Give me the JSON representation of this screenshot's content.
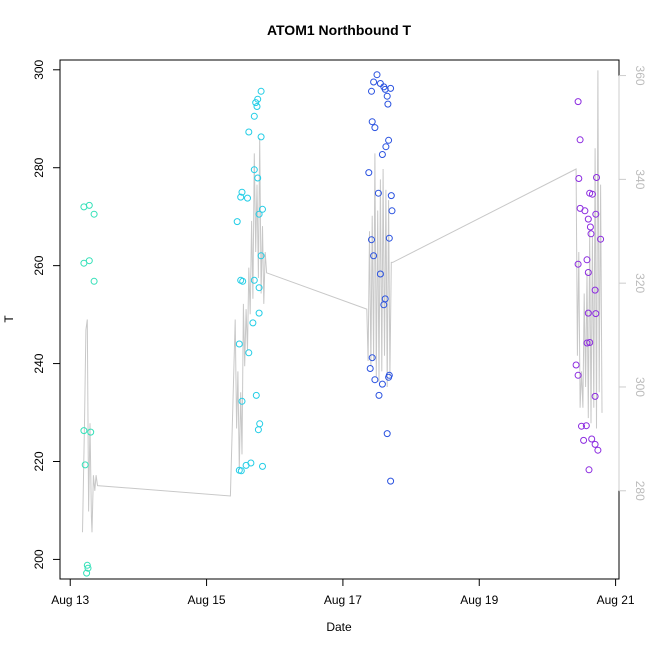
{
  "chart_data": {
    "type": "scatter",
    "title": "ATOM1 Northbound T",
    "xlabel": "Date",
    "ylabel": "T",
    "x_ticks": [
      {
        "label": "Aug 13",
        "day": 13
      },
      {
        "label": "Aug 15",
        "day": 15
      },
      {
        "label": "Aug 17",
        "day": 17
      },
      {
        "label": "Aug 19",
        "day": 19
      },
      {
        "label": "Aug 21",
        "day": 21
      }
    ],
    "xlim": [
      12.85,
      21.05
    ],
    "ylim": [
      196,
      302
    ],
    "y_ticks": [
      200,
      220,
      240,
      260,
      280,
      300
    ],
    "y2lim": [
      263,
      363
    ],
    "y2_ticks": [
      280,
      300,
      320,
      340,
      360
    ],
    "y2_color": "#cccccc",
    "grid": false,
    "legend": "none",
    "colors": {
      "aug13": "#33e0b8",
      "aug15": "#22cde6",
      "aug17": "#2a52e0",
      "aug20": "#8c2be0",
      "line": "#c8c8c8"
    },
    "series": [
      {
        "color": "#33e0b8",
        "axis": "left",
        "points": [
          [
            13.2,
            272
          ],
          [
            13.28,
            272.3
          ],
          [
            13.35,
            270.5
          ],
          [
            13.2,
            260.5
          ],
          [
            13.28,
            261
          ],
          [
            13.35,
            256.8
          ],
          [
            13.2,
            226.3
          ],
          [
            13.3,
            226
          ],
          [
            13.22,
            219.3
          ],
          [
            13.25,
            198.8
          ],
          [
            13.26,
            198.2
          ],
          [
            13.24,
            197.2
          ]
        ]
      },
      {
        "color": "#22cde6",
        "axis": "left",
        "points": [
          [
            15.45,
            269
          ],
          [
            15.5,
            274
          ],
          [
            15.52,
            275
          ],
          [
            15.6,
            273.8
          ],
          [
            15.62,
            287.3
          ],
          [
            15.7,
            290.5
          ],
          [
            15.72,
            293.3
          ],
          [
            15.74,
            292.5
          ],
          [
            15.75,
            294
          ],
          [
            15.8,
            295.6
          ],
          [
            15.8,
            286.3
          ],
          [
            15.7,
            279.6
          ],
          [
            15.75,
            277.9
          ],
          [
            15.77,
            270.5
          ],
          [
            15.82,
            271.5
          ],
          [
            15.8,
            262
          ],
          [
            15.5,
            257
          ],
          [
            15.53,
            256.8
          ],
          [
            15.7,
            257
          ],
          [
            15.77,
            255.5
          ],
          [
            15.68,
            248.3
          ],
          [
            15.62,
            242.2
          ],
          [
            15.77,
            250.3
          ],
          [
            15.48,
            244
          ],
          [
            15.52,
            232.3
          ],
          [
            15.73,
            233.5
          ],
          [
            15.76,
            226.5
          ],
          [
            15.78,
            227.7
          ],
          [
            15.58,
            219.2
          ],
          [
            15.65,
            219.7
          ],
          [
            15.82,
            219
          ],
          [
            15.48,
            218.2
          ],
          [
            15.51,
            218.1
          ]
        ]
      },
      {
        "color": "#2a52e0",
        "axis": "left",
        "points": [
          [
            17.45,
            297.5
          ],
          [
            17.5,
            299
          ],
          [
            17.55,
            297.2
          ],
          [
            17.6,
            296.5
          ],
          [
            17.62,
            296
          ],
          [
            17.7,
            296.2
          ],
          [
            17.42,
            295.6
          ],
          [
            17.65,
            294.6
          ],
          [
            17.66,
            293
          ],
          [
            17.43,
            289.4
          ],
          [
            17.47,
            288.2
          ],
          [
            17.67,
            285.6
          ],
          [
            17.63,
            284.3
          ],
          [
            17.58,
            282.7
          ],
          [
            17.38,
            279
          ],
          [
            17.52,
            274.8
          ],
          [
            17.71,
            274.3
          ],
          [
            17.72,
            271.2
          ],
          [
            17.42,
            265.3
          ],
          [
            17.68,
            265.6
          ],
          [
            17.45,
            262
          ],
          [
            17.55,
            258.3
          ],
          [
            17.62,
            253.2
          ],
          [
            17.6,
            252
          ],
          [
            17.43,
            241.2
          ],
          [
            17.4,
            239
          ],
          [
            17.47,
            236.7
          ],
          [
            17.58,
            235.8
          ],
          [
            17.53,
            233.5
          ],
          [
            17.68,
            237.6
          ],
          [
            17.67,
            237.2
          ],
          [
            17.65,
            225.7
          ],
          [
            17.7,
            216
          ]
        ]
      },
      {
        "color": "#8c2be0",
        "axis": "left",
        "points": [
          [
            20.45,
            293.5
          ],
          [
            20.48,
            285.7
          ],
          [
            20.46,
            277.8
          ],
          [
            20.48,
            271.7
          ],
          [
            20.55,
            271.2
          ],
          [
            20.6,
            269.5
          ],
          [
            20.63,
            267.9
          ],
          [
            20.64,
            266.5
          ],
          [
            20.62,
            274.8
          ],
          [
            20.66,
            274.6
          ],
          [
            20.72,
            278
          ],
          [
            20.71,
            270.5
          ],
          [
            20.78,
            265.4
          ],
          [
            20.45,
            260.3
          ],
          [
            20.58,
            261.2
          ],
          [
            20.6,
            258.6
          ],
          [
            20.7,
            255
          ],
          [
            20.6,
            250.3
          ],
          [
            20.71,
            250.2
          ],
          [
            20.58,
            244.2
          ],
          [
            20.62,
            244.3
          ],
          [
            20.42,
            239.7
          ],
          [
            20.45,
            237.6
          ],
          [
            20.7,
            233.3
          ],
          [
            20.5,
            227.2
          ],
          [
            20.57,
            227.3
          ],
          [
            20.53,
            224.3
          ],
          [
            20.65,
            224.6
          ],
          [
            20.7,
            223.5
          ],
          [
            20.74,
            222.3
          ],
          [
            20.61,
            218.3
          ]
        ]
      }
    ],
    "line": {
      "color": "#c8c8c8",
      "axis": "right",
      "x": [
        13.18,
        13.21,
        13.23,
        13.25,
        13.27,
        13.29,
        13.31,
        13.32,
        13.34,
        13.36,
        13.38,
        13.4,
        15.35,
        15.42,
        15.44,
        15.46,
        15.48,
        15.5,
        15.52,
        15.54,
        15.56,
        15.58,
        15.6,
        15.62,
        15.64,
        15.66,
        15.68,
        15.7,
        15.72,
        15.74,
        15.76,
        15.78,
        15.8,
        15.82,
        15.84,
        15.86,
        15.88,
        17.35,
        17.37,
        17.39,
        17.41,
        17.43,
        17.45,
        17.47,
        17.49,
        17.51,
        17.53,
        17.55,
        17.57,
        17.59,
        17.61,
        17.63,
        17.65,
        17.67,
        17.69,
        17.71,
        17.73,
        20.42,
        20.44,
        20.46,
        20.48,
        20.5,
        20.52,
        20.54,
        20.56,
        20.58,
        20.6,
        20.62,
        20.64,
        20.66,
        20.68,
        20.7,
        20.72,
        20.74,
        20.76,
        20.78,
        20.8
      ],
      "y": [
        272,
        293,
        311,
        313,
        276,
        293,
        275,
        272,
        283,
        280,
        283,
        281,
        279,
        313,
        292,
        303,
        284,
        299,
        287,
        316,
        304,
        315,
        307,
        323,
        314,
        332,
        317,
        345,
        326,
        339,
        321,
        348,
        318,
        331,
        316,
        326,
        322,
        315,
        305,
        330,
        304,
        333,
        305,
        345,
        302,
        334,
        301,
        340,
        303,
        342,
        306,
        338,
        300,
        336,
        302,
        324,
        324,
        342,
        306,
        326,
        296,
        303,
        296,
        318,
        300,
        322,
        294,
        330,
        293,
        329,
        296,
        346,
        292,
        361,
        299,
        339,
        295
      ]
    }
  }
}
